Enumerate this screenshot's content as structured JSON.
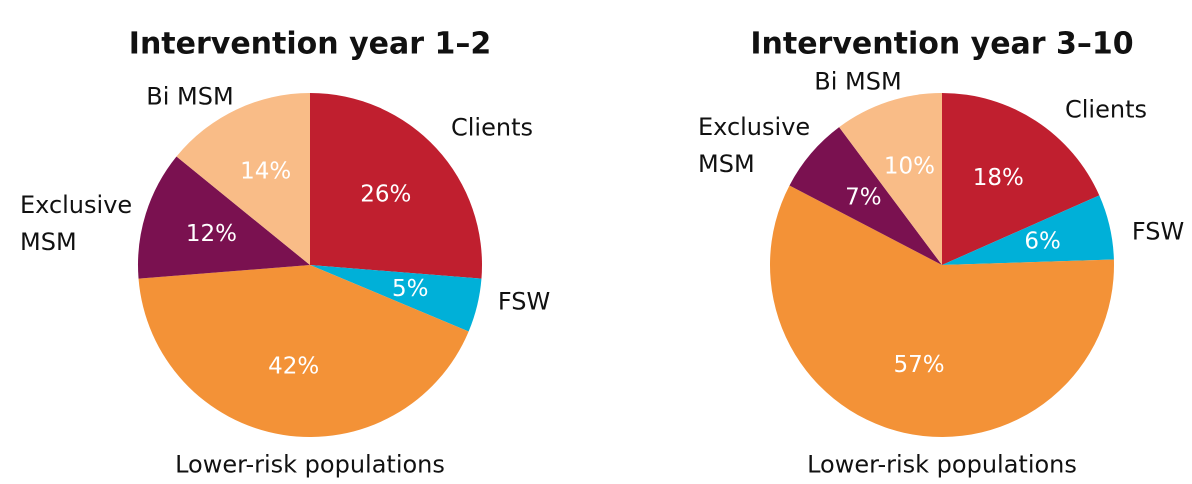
{
  "chart_data": [
    {
      "type": "pie",
      "title": "Intervention year 1–2",
      "categories": [
        "Clients",
        "FSW",
        "Lower-risk populations",
        "Exclusive MSM",
        "Bi MSM"
      ],
      "values": [
        26,
        5,
        42,
        12,
        14
      ],
      "value_labels": [
        "26%",
        "5%",
        "42%",
        "12%",
        "14%"
      ],
      "colors": [
        "#c01f2f",
        "#00b0d8",
        "#f39237",
        "#7a1150",
        "#f9bc87"
      ]
    },
    {
      "type": "pie",
      "title": "Intervention year 3–10",
      "categories": [
        "Clients",
        "FSW",
        "Lower-risk populations",
        "Exclusive MSM",
        "Bi MSM"
      ],
      "values": [
        18,
        6,
        57,
        7,
        10
      ],
      "value_labels": [
        "18%",
        "6%",
        "57%",
        "7%",
        "10%"
      ],
      "colors": [
        "#c01f2f",
        "#00b0d8",
        "#f39237",
        "#7a1150",
        "#f9bc87"
      ]
    }
  ]
}
